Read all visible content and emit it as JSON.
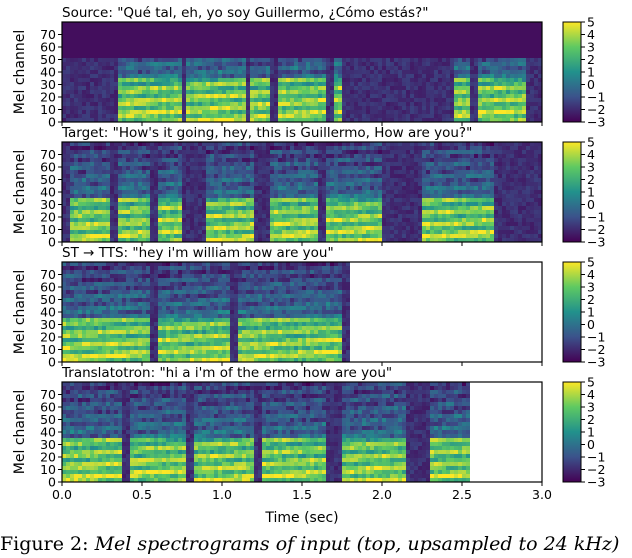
{
  "caption": {
    "label": "Figure 2:",
    "text": "Mel spectrograms of input (top, upsampled to 24 kHz)"
  },
  "chart_data": [
    {
      "type": "heatmap",
      "title": "Source: \"Qué tal, eh, yo soy Guillermo, ¿Cómo estás?\"",
      "ylabel": "Mel channel",
      "xlim": [
        0,
        3.0
      ],
      "ylim": [
        0,
        80
      ],
      "yticks": [
        0,
        10,
        20,
        30,
        40,
        50,
        60,
        70
      ],
      "data_extent_sec": 3.0,
      "top_limit_channel": 50,
      "colorbar": {
        "min": -3,
        "max": 5,
        "ticks": [
          5,
          4,
          3,
          2,
          1,
          0,
          -1,
          -2,
          -3
        ]
      },
      "colormap": [
        "#440154",
        "#3b528b",
        "#21918c",
        "#5ec962",
        "#fde725"
      ],
      "speech_segments_sec": [
        [
          0.35,
          0.75
        ],
        [
          0.78,
          1.15
        ],
        [
          1.18,
          1.3
        ],
        [
          1.35,
          1.65
        ],
        [
          1.7,
          1.75
        ],
        [
          2.45,
          2.55
        ],
        [
          2.6,
          2.9
        ]
      ]
    },
    {
      "type": "heatmap",
      "title": "Target: \"How's it going, hey, this is Guillermo, How are you?\"",
      "ylabel": "Mel channel",
      "xlim": [
        0,
        3.0
      ],
      "ylim": [
        0,
        80
      ],
      "yticks": [
        0,
        10,
        20,
        30,
        40,
        50,
        60,
        70
      ],
      "data_extent_sec": 3.0,
      "colorbar": {
        "min": -3,
        "max": 5,
        "ticks": [
          5,
          4,
          3,
          2,
          1,
          0,
          -1,
          -2,
          -3
        ]
      },
      "speech_segments_sec": [
        [
          0.05,
          0.3
        ],
        [
          0.35,
          0.55
        ],
        [
          0.6,
          0.75
        ],
        [
          0.9,
          1.2
        ],
        [
          1.3,
          1.6
        ],
        [
          1.65,
          2.0
        ],
        [
          2.25,
          2.7
        ]
      ]
    },
    {
      "type": "heatmap",
      "title": "ST → TTS: \"hey i'm william how are you\"",
      "ylabel": "Mel channel",
      "xlim": [
        0,
        3.0
      ],
      "ylim": [
        0,
        80
      ],
      "yticks": [
        0,
        10,
        20,
        30,
        40,
        50,
        60,
        70
      ],
      "data_extent_sec": 1.8,
      "colorbar": {
        "min": -3,
        "max": 5,
        "ticks": [
          5,
          4,
          3,
          2,
          1,
          0,
          -1,
          -2,
          -3
        ]
      },
      "speech_segments_sec": [
        [
          0.0,
          0.55
        ],
        [
          0.6,
          1.05
        ],
        [
          1.1,
          1.75
        ]
      ]
    },
    {
      "type": "heatmap",
      "title": "Translatotron: \"hi a i'm of the ermo how are you\"",
      "ylabel": "Mel channel",
      "xlabel": "Time (sec)",
      "xlim": [
        0,
        3.0
      ],
      "ylim": [
        0,
        80
      ],
      "yticks": [
        0,
        10,
        20,
        30,
        40,
        50,
        60,
        70
      ],
      "xticks": [
        "0.0",
        "0.5",
        "1.0",
        "1.5",
        "2.0",
        "2.5",
        "3.0"
      ],
      "data_extent_sec": 2.55,
      "colorbar": {
        "min": -3,
        "max": 5,
        "ticks": [
          5,
          4,
          3,
          2,
          1,
          0,
          -1,
          -2,
          -3
        ]
      },
      "speech_segments_sec": [
        [
          0.0,
          0.38
        ],
        [
          0.42,
          0.78
        ],
        [
          0.82,
          1.2
        ],
        [
          1.25,
          1.65
        ],
        [
          1.75,
          2.15
        ],
        [
          2.3,
          2.55
        ]
      ]
    }
  ]
}
